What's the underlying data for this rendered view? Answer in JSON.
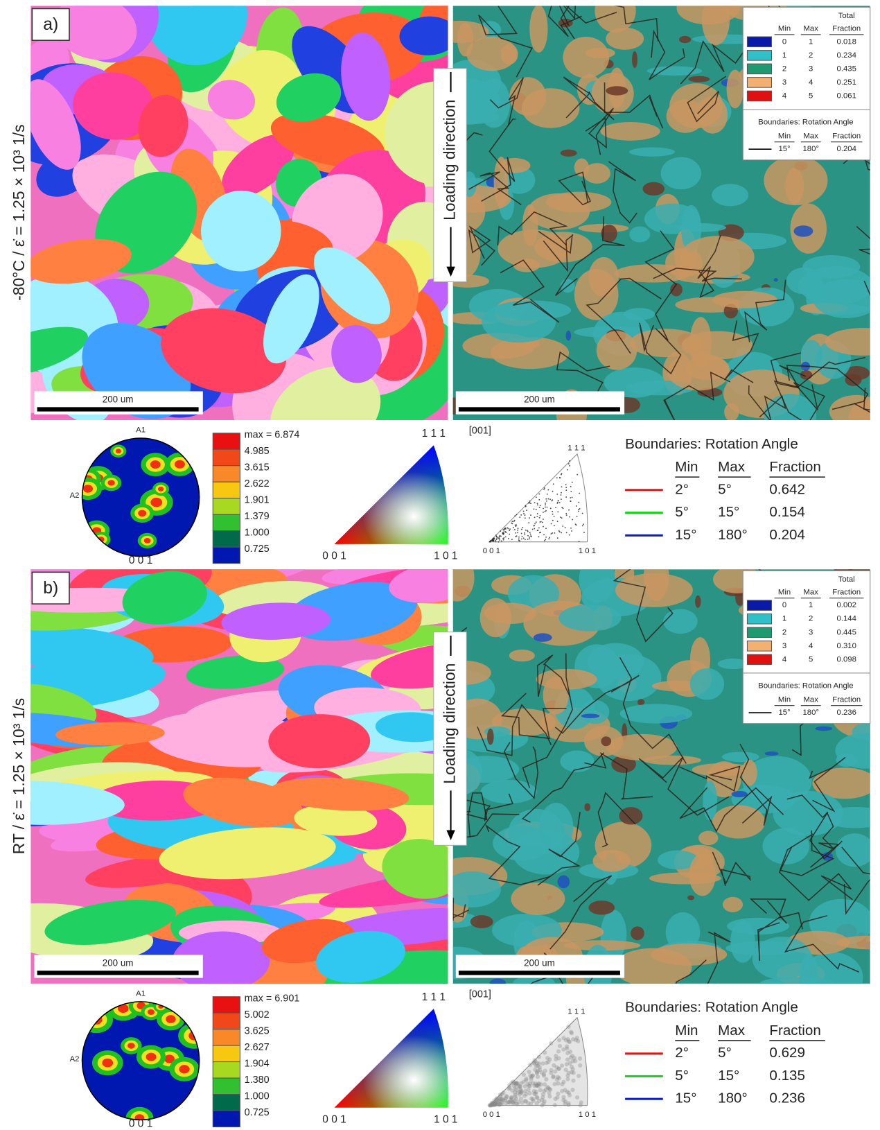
{
  "panels": [
    {
      "label": "a)",
      "row_label": "-80°C / ε̇ = 1.25 × 10³ 1/s",
      "loading_direction": "Loading direction",
      "scale_bar_left": "200 um",
      "scale_bar_right": "200 um",
      "kam_legend": {
        "total": "Total",
        "header": [
          "Min",
          "Max",
          "Fraction"
        ],
        "rows": [
          [
            "0",
            "1",
            "0.018"
          ],
          [
            "1",
            "2",
            "0.234"
          ],
          [
            "2",
            "3",
            "0.435"
          ],
          [
            "3",
            "4",
            "0.251"
          ],
          [
            "4",
            "5",
            "0.061"
          ]
        ],
        "boundaries_title": "Boundaries: Rotation Angle",
        "boundaries_header": [
          "Min",
          "Max",
          "Fraction"
        ],
        "boundaries_row": [
          "15°",
          "180°",
          "0.204"
        ]
      },
      "pole_figure": {
        "top": "A1",
        "left": "A2",
        "bottom": "0 0 1"
      },
      "contour_legend": [
        "max = 6.874",
        "4.985",
        "3.615",
        "2.622",
        "1.901",
        "1.379",
        "1.000",
        "0.725"
      ],
      "ipf_key": {
        "top": "1 1 1",
        "left": "0 0 1",
        "right": "1 0 1"
      },
      "ipf_density": {
        "title": "[001]",
        "top": "1 1 1",
        "left": "0 0 1",
        "right": "1 0 1"
      },
      "boundaries": {
        "title": "Boundaries: Rotation Angle",
        "header": [
          "Min",
          "Max",
          "Fraction"
        ],
        "rows": [
          [
            "2°",
            "5°",
            "0.642"
          ],
          [
            "5°",
            "15°",
            "0.154"
          ],
          [
            "15°",
            "180°",
            "0.204"
          ]
        ]
      }
    },
    {
      "label": "b)",
      "row_label": "RT  / ε̇ = 1.25 × 10³ 1/s",
      "loading_direction": "Loading direction",
      "scale_bar_left": "200 um",
      "scale_bar_right": "200 um",
      "kam_legend": {
        "total": "Total",
        "header": [
          "Min",
          "Max",
          "Fraction"
        ],
        "rows": [
          [
            "0",
            "1",
            "0.002"
          ],
          [
            "1",
            "2",
            "0.144"
          ],
          [
            "2",
            "3",
            "0.445"
          ],
          [
            "3",
            "4",
            "0.310"
          ],
          [
            "4",
            "5",
            "0.098"
          ]
        ],
        "boundaries_title": "Boundaries: Rotation Angle",
        "boundaries_header": [
          "Min",
          "Max",
          "Fraction"
        ],
        "boundaries_row": [
          "15°",
          "180°",
          "0.236"
        ]
      },
      "pole_figure": {
        "top": "A1",
        "left": "A2",
        "bottom": "0 0 1"
      },
      "contour_legend": [
        "max = 6.901",
        "5.002",
        "3.625",
        "2.627",
        "1.904",
        "1.380",
        "1.000",
        "0.725"
      ],
      "ipf_key": {
        "top": "1 1 1",
        "left": "0 0 1",
        "right": "1 0 1"
      },
      "ipf_density": {
        "title": "[001]",
        "top": "1 1 1",
        "left": "0 0 1",
        "right": "1 0 1"
      },
      "boundaries": {
        "title": "Boundaries: Rotation Angle",
        "header": [
          "Min",
          "Max",
          "Fraction"
        ],
        "rows": [
          [
            "2°",
            "5°",
            "0.629"
          ],
          [
            "5°",
            "15°",
            "0.135"
          ],
          [
            "15°",
            "180°",
            "0.236"
          ]
        ]
      }
    }
  ]
}
